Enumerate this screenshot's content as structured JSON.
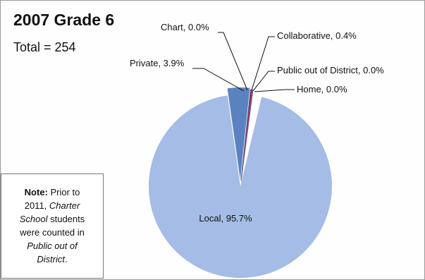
{
  "chart_data": {
    "type": "pie",
    "title": "2007 Grade 6",
    "subtitle": "Total = 254",
    "slices": [
      {
        "label": "Local",
        "value": 95.7,
        "display": "Local, 95.7%",
        "color": "#a4bce6"
      },
      {
        "label": "Private",
        "value": 3.9,
        "display": "Private, 3.9%",
        "color": "#5b82c0"
      },
      {
        "label": "Chart",
        "value": 0.0,
        "display": "Chart, 0.0%",
        "color": "#4a6fae"
      },
      {
        "label": "Collaborative",
        "value": 0.4,
        "display": "Collaborative, 0.4%",
        "color": "#8a3a5a"
      },
      {
        "label": "Public out of District",
        "value": 0.0,
        "display": "Public out of District, 0.0%",
        "color": "#6a8a3a"
      },
      {
        "label": "Home",
        "value": 0.0,
        "display": "Home, 0.0%",
        "color": "#7a5aa0"
      }
    ]
  },
  "note": {
    "label": "Note:",
    "t1": "Prior to",
    "t2": "2011,",
    "t3": "Charter",
    "t4": "School",
    "t5": "students",
    "t6": "were counted in",
    "t7": "Public out of",
    "t8": "District",
    "t9": "."
  }
}
